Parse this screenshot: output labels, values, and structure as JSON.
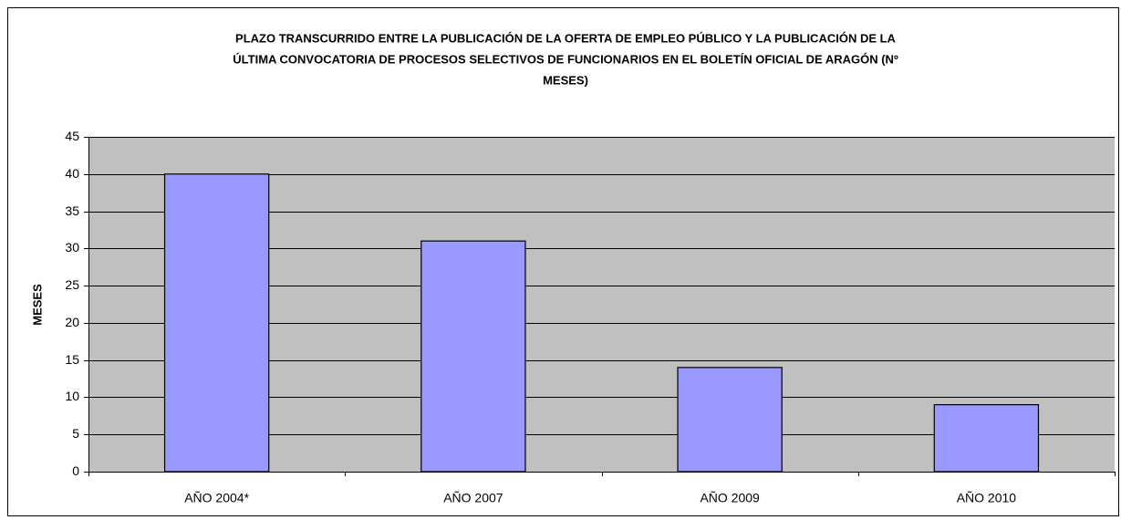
{
  "chart_data": {
    "type": "bar",
    "title": [
      "PLAZO TRANSCURRIDO ENTRE LA PUBLICACIÓN DE LA OFERTA DE EMPLEO PÚBLICO Y LA PUBLICACIÓN DE LA",
      "ÚLTIMA CONVOCATORIA DE PROCESOS SELECTIVOS DE FUNCIONARIOS EN EL BOLETÍN OFICIAL DE ARAGÓN (Nº",
      "MESES)"
    ],
    "y_label": "MESES",
    "categories": [
      "AÑO 2004*",
      "AÑO 2007",
      "AÑO 2009",
      "AÑO 2010"
    ],
    "values": [
      40,
      31,
      14,
      9
    ],
    "color": "#9999ff",
    "ylim": [
      0,
      45
    ],
    "yticks": [
      0,
      5,
      10,
      15,
      20,
      25,
      30,
      35,
      40,
      45
    ],
    "grid": true
  }
}
